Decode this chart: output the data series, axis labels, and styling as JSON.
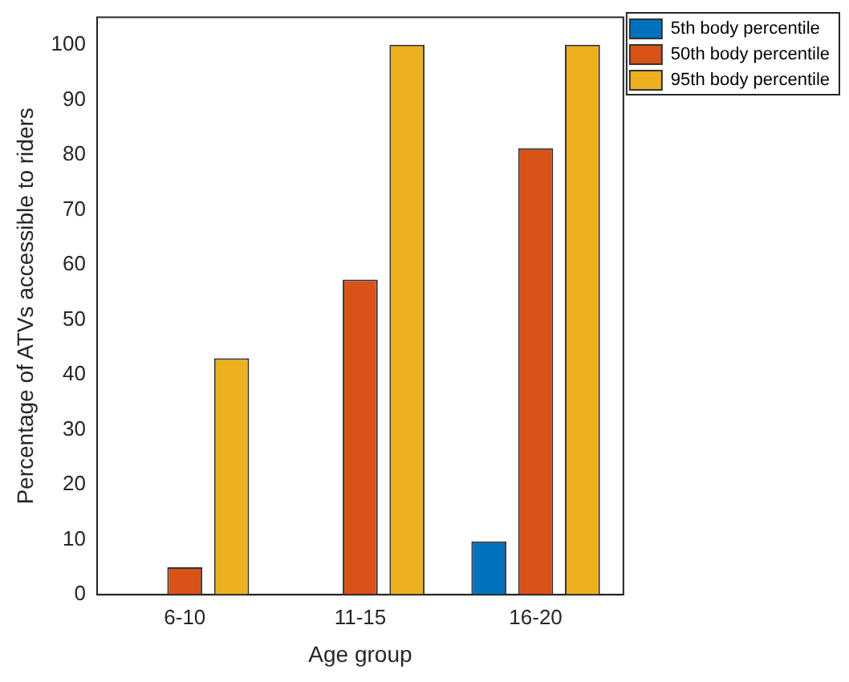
{
  "chart_data": {
    "type": "bar",
    "xlabel": "Age group",
    "ylabel": "Percentage of ATVs accessible to riders",
    "categories": [
      "6-10",
      "11-15",
      "16-20"
    ],
    "series": [
      {
        "name": "5th body percentile",
        "color": "#0072bd",
        "values": [
          0,
          0,
          9.7
        ]
      },
      {
        "name": "50th body percentile",
        "color": "#d95319",
        "values": [
          5,
          57.3,
          81.2
        ]
      },
      {
        "name": "95th body percentile",
        "color": "#edb120",
        "values": [
          43,
          100,
          100
        ]
      }
    ],
    "ylim": [
      0,
      105
    ],
    "yticks": [
      0,
      10,
      20,
      30,
      40,
      50,
      60,
      70,
      80,
      90,
      100
    ],
    "grid": false,
    "legend": "top right"
  }
}
